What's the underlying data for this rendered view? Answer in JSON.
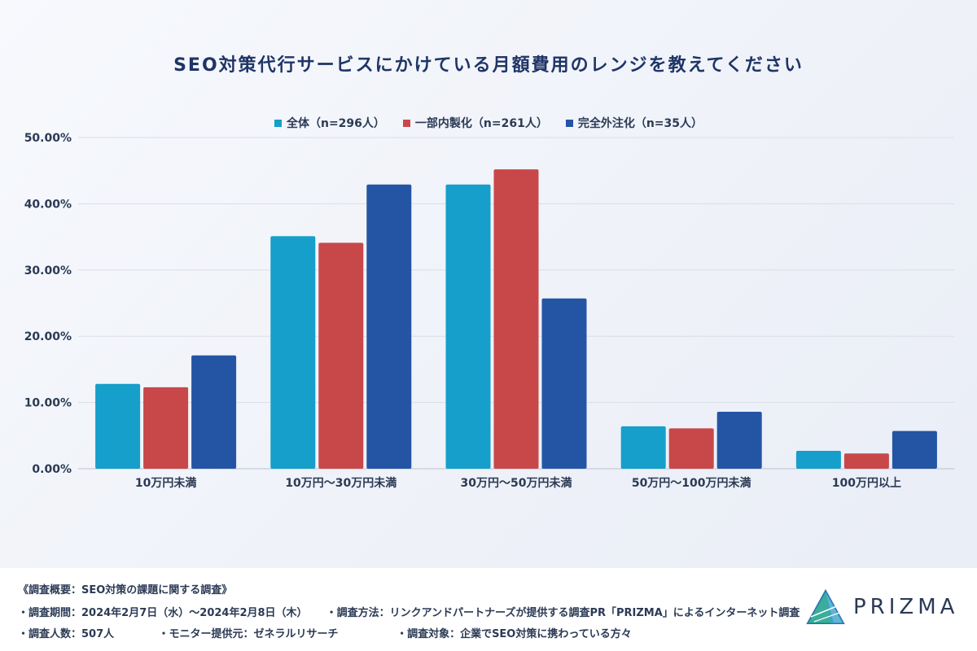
{
  "chart_data": {
    "type": "bar",
    "title": "SEO対策代行サービスにかけている月額費用のレンジを教えてください",
    "categories": [
      "10万円未満",
      "10万円〜30万円未満",
      "30万円〜50万円未満",
      "50万円〜100万円未満",
      "100万円以上"
    ],
    "series": [
      {
        "name": "全体（n=296人）",
        "color": "#159fca",
        "values": [
          12.8,
          35.1,
          42.9,
          6.4,
          2.7
        ]
      },
      {
        "name": "一部内製化（n=261人）",
        "color": "#c8484a",
        "values": [
          12.3,
          34.1,
          45.2,
          6.1,
          2.3
        ]
      },
      {
        "name": "完全外注化（n=35人）",
        "color": "#2455a4",
        "values": [
          17.1,
          42.9,
          25.7,
          8.6,
          5.7
        ]
      }
    ],
    "ylim": [
      0,
      50
    ],
    "yticks": [
      "0.00%",
      "10.00%",
      "20.00%",
      "30.00%",
      "40.00%",
      "50.00%"
    ],
    "grid": true,
    "legend": "top-center"
  },
  "footer": {
    "heading": "《調査概要：SEO対策の課題に関する調査》",
    "period": "・調査期間：2024年2月7日（水）〜2024年2月8日（木）",
    "method": "・調査方法：リンクアンドパートナーズが提供する調査PR「PRIZMA」によるインターネット調査",
    "count": "・調査人数：507人",
    "provider": "・モニター提供元：ゼネラルリサーチ",
    "target": "・調査対象：企業でSEO対策に携わっている方々"
  },
  "brand": {
    "name": "PRIZMA",
    "logo_icon": "prism-logo-icon",
    "colors": [
      "#1a9e8a",
      "#2e6db4",
      "#3aa3c8"
    ]
  }
}
